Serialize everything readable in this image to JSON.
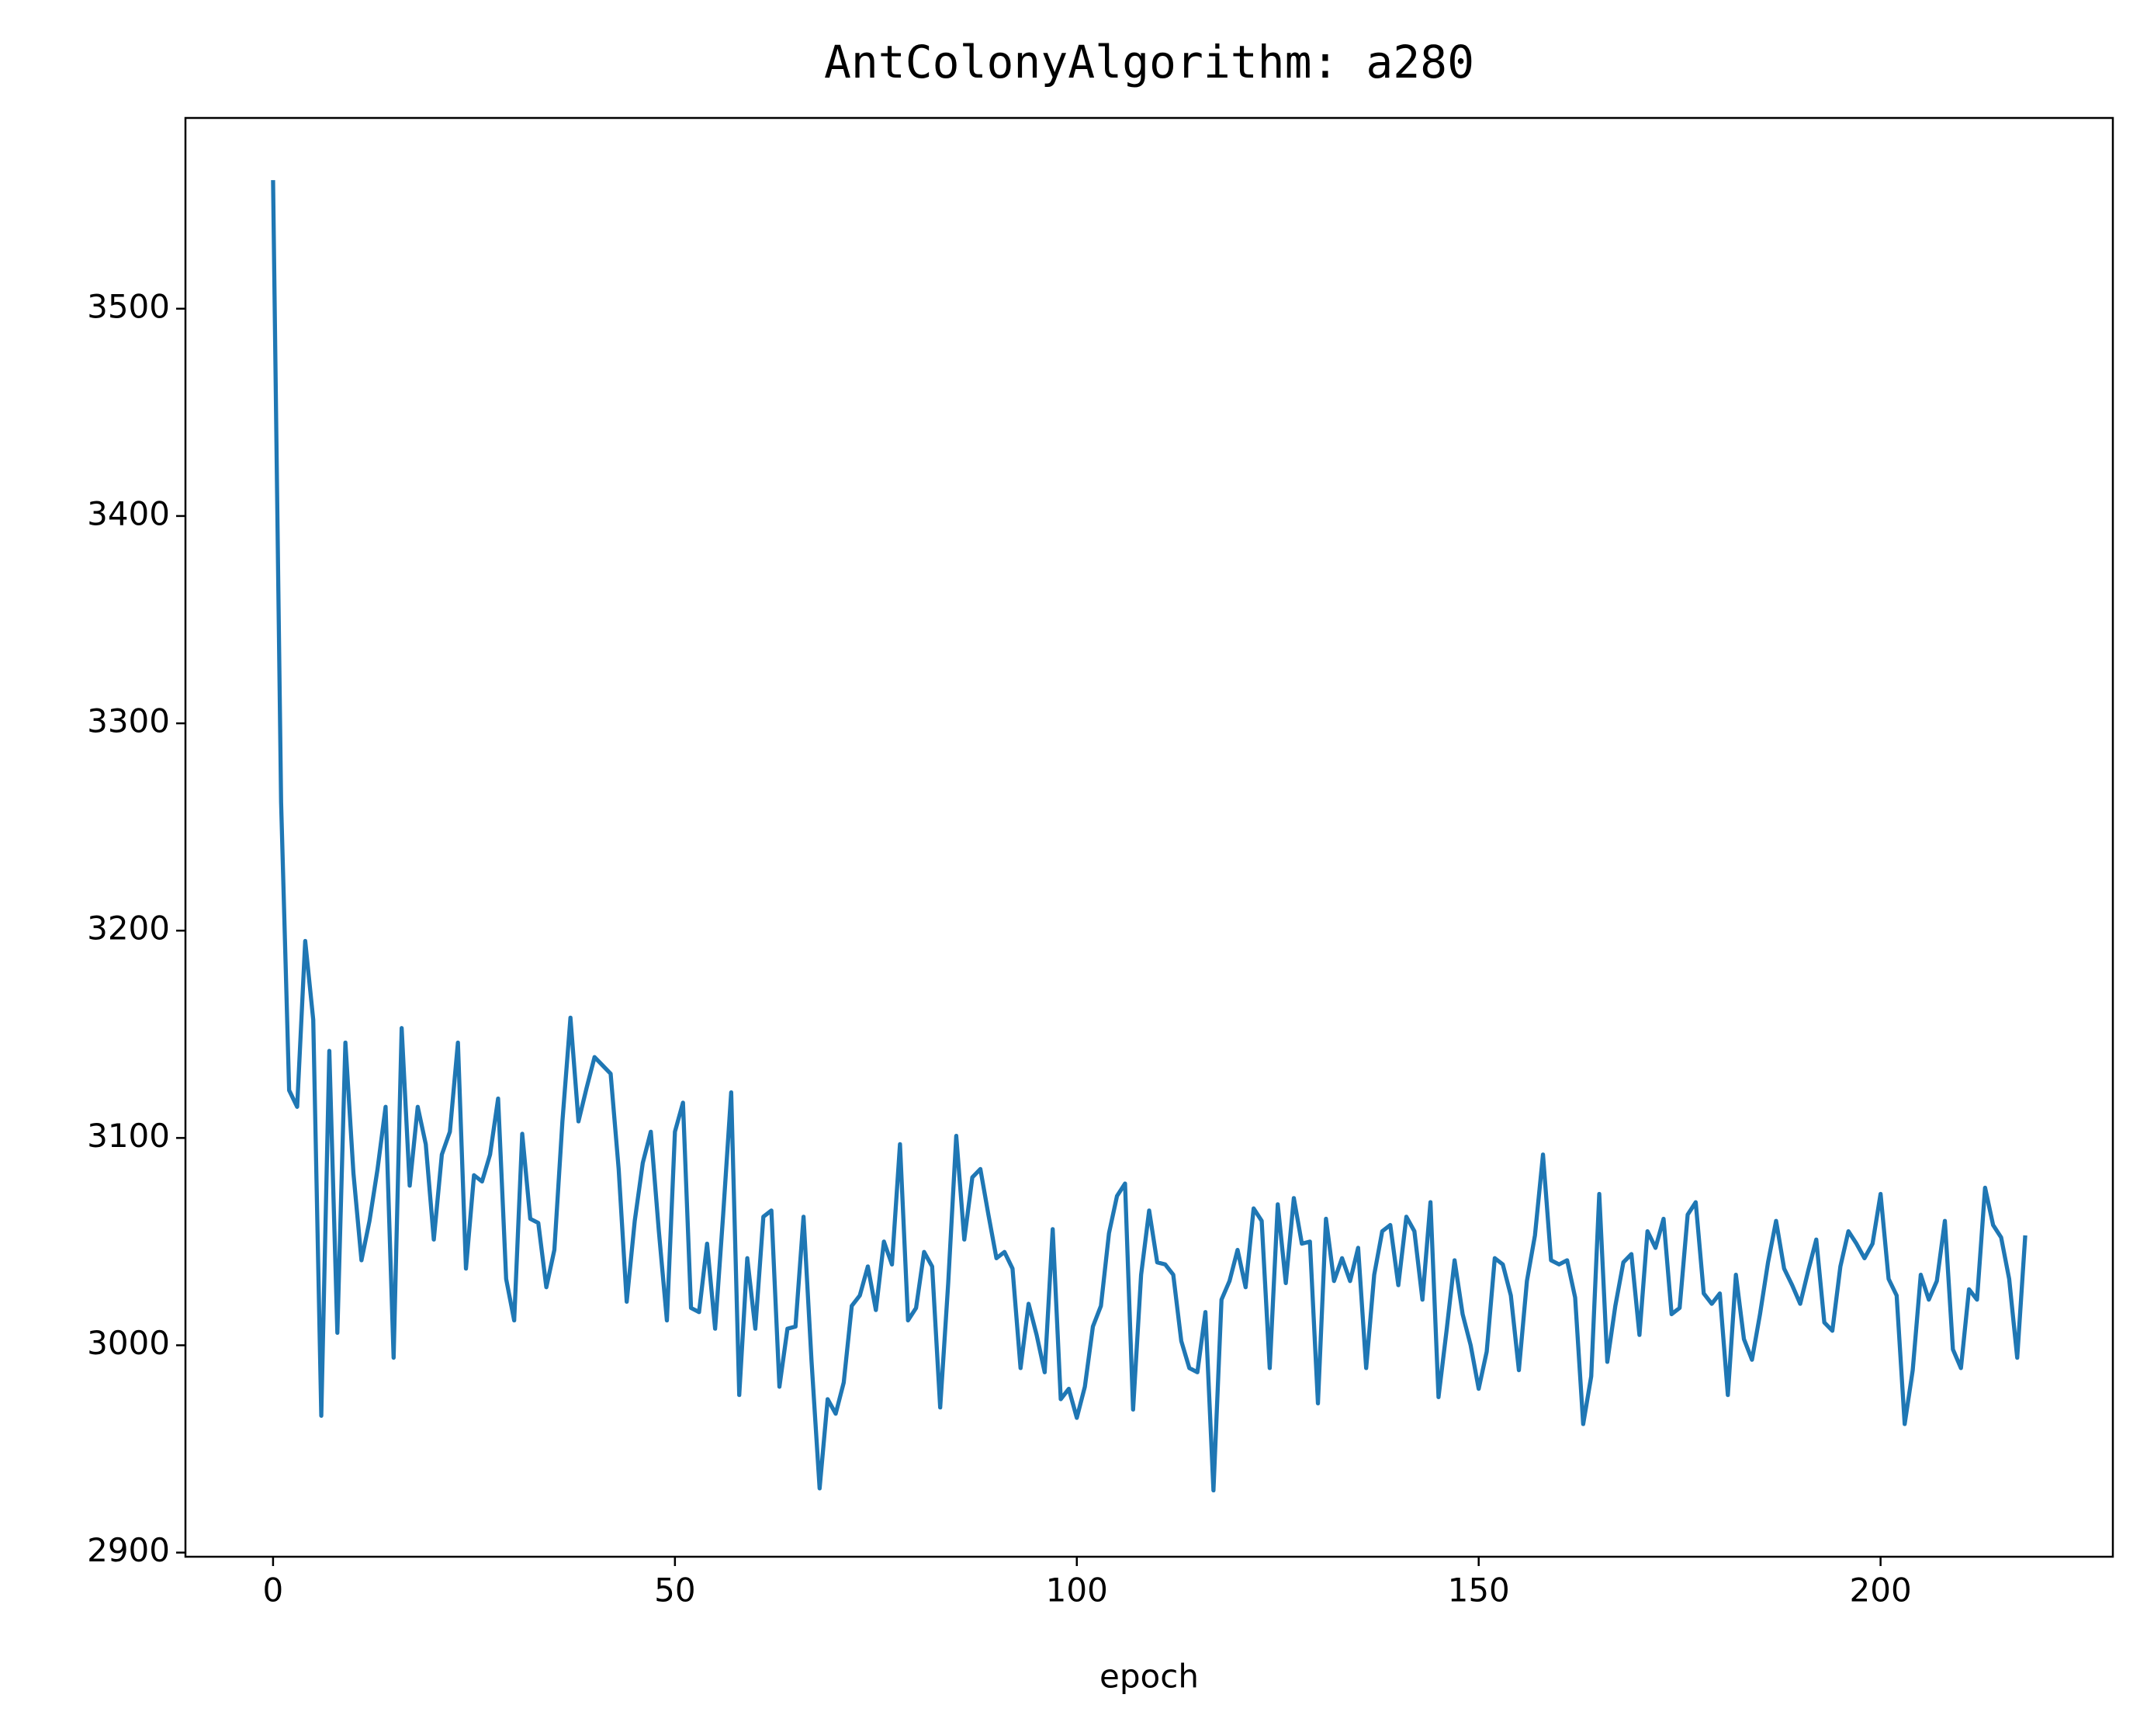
{
  "chart_data": {
    "type": "line",
    "title": "AntColonyAlgorithm: a280",
    "x_label": "epoch",
    "x": [
      0,
      1,
      2,
      3,
      4,
      5,
      6,
      7,
      8,
      9,
      10,
      11,
      12,
      13,
      14,
      15,
      16,
      17,
      18,
      19,
      20,
      21,
      22,
      23,
      24,
      25,
      26,
      27,
      28,
      29,
      30,
      31,
      32,
      33,
      34,
      35,
      36,
      37,
      38,
      39,
      40,
      41,
      42,
      43,
      44,
      45,
      46,
      47,
      48,
      49,
      50,
      51,
      52,
      53,
      54,
      55,
      56,
      57,
      58,
      59,
      60,
      61,
      62,
      63,
      64,
      65,
      66,
      67,
      68,
      69,
      70,
      71,
      72,
      73,
      74,
      75,
      76,
      77,
      78,
      79,
      80,
      81,
      82,
      83,
      84,
      85,
      86,
      87,
      88,
      89,
      90,
      91,
      92,
      93,
      94,
      95,
      96,
      97,
      98,
      99,
      100,
      101,
      102,
      103,
      104,
      105,
      106,
      107,
      108,
      109,
      110,
      111,
      112,
      113,
      114,
      115,
      116,
      117,
      118,
      119,
      120,
      121,
      122,
      123,
      124,
      125,
      126,
      127,
      128,
      129,
      130,
      131,
      132,
      133,
      134,
      135,
      136,
      137,
      138,
      139,
      140,
      141,
      142,
      143,
      144,
      145,
      146,
      147,
      148,
      149,
      150,
      151,
      152,
      153,
      154,
      155,
      156,
      157,
      158,
      159,
      160,
      161,
      162,
      163,
      164,
      165,
      166,
      167,
      168,
      169,
      170,
      171,
      172,
      173,
      174,
      175,
      176,
      177,
      178,
      179,
      180,
      181,
      182,
      183,
      184,
      185,
      186,
      187,
      188,
      189,
      190,
      191,
      192,
      193,
      194,
      195,
      196,
      197,
      198,
      199,
      200,
      201,
      202,
      203,
      204,
      205,
      206,
      207,
      208,
      209,
      210,
      211,
      212,
      213,
      214,
      215,
      216,
      217,
      218
    ],
    "values": [
      3562,
      3262,
      3123,
      3115,
      3195,
      3157,
      2966,
      3142,
      3006,
      3146,
      3083,
      3041,
      3060,
      3085,
      3115,
      2994,
      3153,
      3077,
      3115,
      3097,
      3051,
      3092,
      3103,
      3146,
      3037,
      3082,
      3079,
      3092,
      3119,
      3032,
      3012,
      3102,
      3061,
      3059,
      3028,
      3046,
      3108,
      3158,
      3108,
      3124,
      3139,
      3135,
      3131,
      3085,
      3021,
      3060,
      3088,
      3103,
      3055,
      3012,
      3103,
      3117,
      3018,
      3016,
      3049,
      3008,
      3063,
      3122,
      2976,
      3042,
      3008,
      3062,
      3065,
      2980,
      3008,
      3009,
      3062,
      2992,
      2931,
      2974,
      2967,
      2982,
      3019,
      3024,
      3038,
      3017,
      3050,
      3039,
      3097,
      3012,
      3018,
      3045,
      3038,
      2970,
      3030,
      3101,
      3051,
      3081,
      3085,
      3063,
      3042,
      3045,
      3037,
      2989,
      3020,
      3005,
      2987,
      3056,
      2974,
      2979,
      2965,
      2980,
      3009,
      3019,
      3054,
      3072,
      3078,
      2969,
      3034,
      3065,
      3040,
      3039,
      3034,
      3002,
      2989,
      2987,
      3016,
      2930,
      3022,
      3031,
      3046,
      3028,
      3066,
      3060,
      2989,
      3068,
      3030,
      3071,
      3049,
      3050,
      2972,
      3061,
      3031,
      3042,
      3031,
      3047,
      2989,
      3034,
      3055,
      3058,
      3029,
      3062,
      3055,
      3022,
      3069,
      2975,
      3007,
      3041,
      3015,
      3000,
      2979,
      2997,
      3042,
      3039,
      3024,
      2988,
      3031,
      3053,
      3092,
      3041,
      3039,
      3041,
      3023,
      2962,
      2985,
      3073,
      2992,
      3019,
      3040,
      3044,
      3005,
      3055,
      3047,
      3061,
      3015,
      3018,
      3063,
      3069,
      3025,
      3020,
      3025,
      2976,
      3034,
      3003,
      2993,
      3015,
      3040,
      3060,
      3037,
      3029,
      3020,
      3036,
      3051,
      3011,
      3007,
      3038,
      3055,
      3049,
      3042,
      3049,
      3073,
      3032,
      3024,
      2962,
      2988,
      3034,
      3022,
      3031,
      3060,
      2998,
      2989,
      3027,
      3022,
      3076,
      3058,
      3052,
      3032,
      2994,
      3053
    ],
    "color": "#1f77b4",
    "xlim": [
      -10.9,
      228.9
    ],
    "xticks": [
      0,
      50,
      100,
      150,
      200
    ],
    "ylim": [
      2898,
      3592
    ],
    "yticks": [
      2900,
      3000,
      3100,
      3200,
      3300,
      3400,
      3500
    ]
  }
}
